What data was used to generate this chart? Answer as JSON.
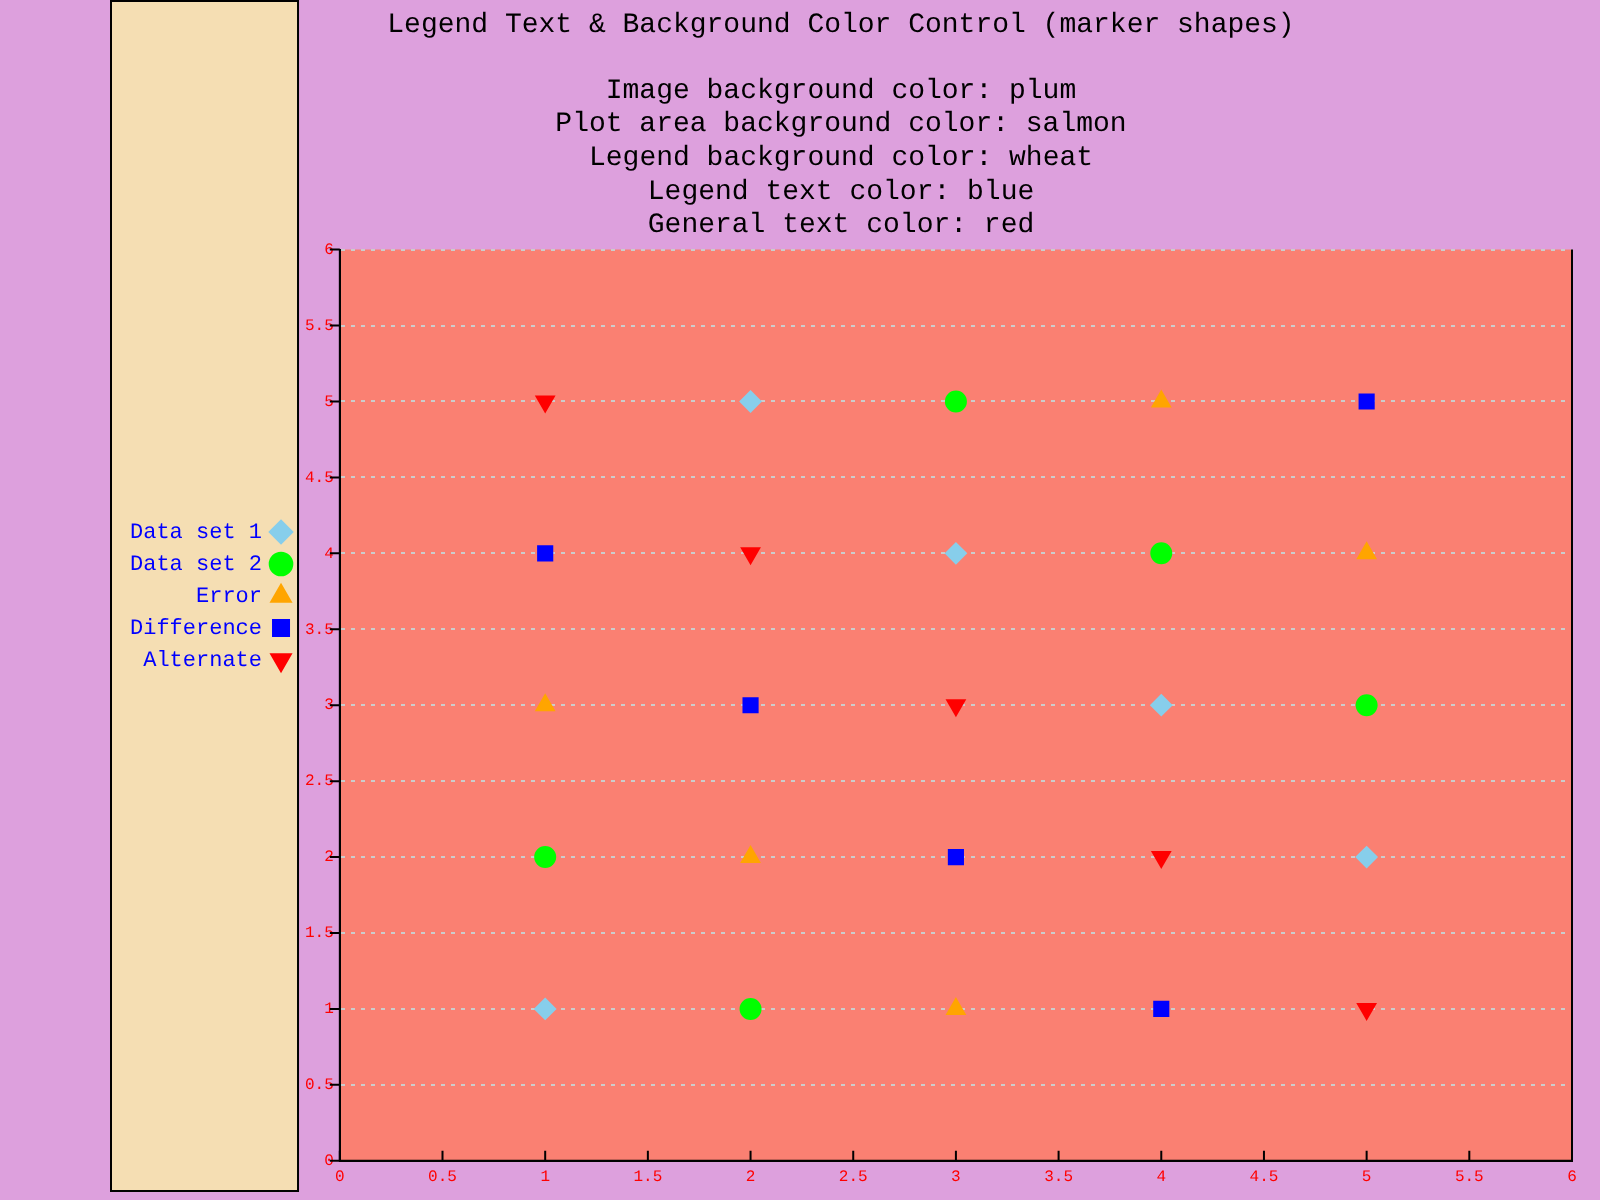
{
  "chart_data": {
    "type": "scatter",
    "title": "Legend Text & Background Color Control (marker shapes)",
    "subtitle": "Image background color: plum\nPlot area background color: salmon\nLegend background color: wheat\nLegend text color: blue\nGeneral text color: red",
    "x": [
      1,
      2,
      3,
      4,
      5
    ],
    "series": [
      {
        "name": "Data set 1",
        "color": "#87ceeb",
        "marker": "diamond",
        "values": [
          1,
          5,
          4,
          3,
          2
        ]
      },
      {
        "name": "Data set 2",
        "color": "#00ff00",
        "marker": "circle",
        "values": [
          2,
          1,
          5,
          4,
          3
        ]
      },
      {
        "name": "Error",
        "color": "#ffa500",
        "marker": "triangle",
        "values": [
          3,
          2,
          1,
          5,
          4
        ]
      },
      {
        "name": "Difference",
        "color": "#0000ff",
        "marker": "square",
        "values": [
          4,
          3,
          2,
          1,
          5
        ]
      },
      {
        "name": "Alternate",
        "color": "#ff0000",
        "marker": "triangle-down",
        "values": [
          5,
          4,
          3,
          2,
          1
        ]
      }
    ],
    "xlim": [
      0,
      6
    ],
    "xticks": [
      0,
      0.5,
      1,
      1.5,
      2,
      2.5,
      3,
      3.5,
      4,
      4.5,
      5,
      5.5,
      6
    ],
    "ylim": [
      0,
      6
    ],
    "yticks": [
      0,
      0.5,
      1,
      1.5,
      2,
      2.5,
      3,
      3.5,
      4,
      4.5,
      5,
      5.5,
      6
    ],
    "grid": "y",
    "legend": "left"
  }
}
